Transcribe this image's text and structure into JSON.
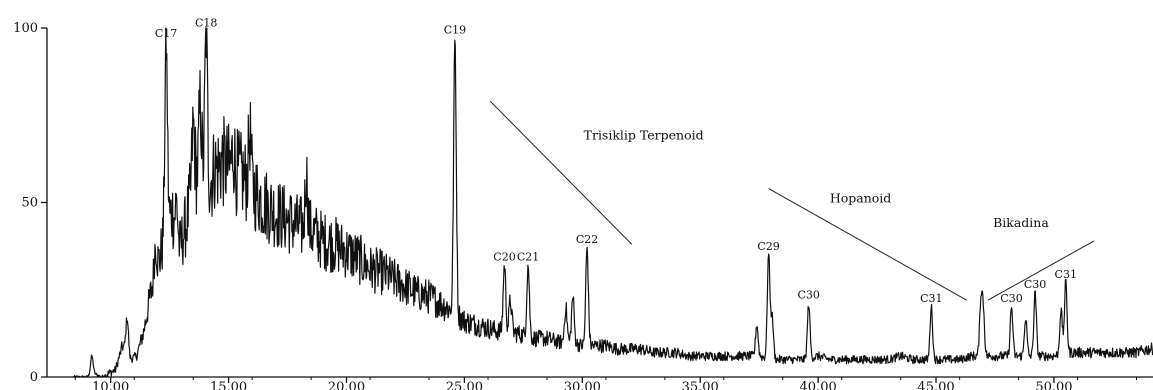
{
  "chart_data": {
    "type": "line",
    "title": "",
    "xlabel": "",
    "ylabel": "",
    "xlim": [
      7.3,
      54.2
    ],
    "ylim": [
      0,
      100
    ],
    "xticks": [
      10,
      15,
      20,
      25,
      30,
      35,
      40,
      45,
      50
    ],
    "xtick_labels": [
      "10.00",
      "15.00",
      "20.00",
      "25.00",
      "30.00",
      "35.00",
      "40.00",
      "45.00",
      "50.00"
    ],
    "yticks": [
      0,
      50,
      100
    ],
    "ytick_labels": [
      "0",
      "50",
      "100"
    ],
    "grid": false,
    "series": [
      {
        "x": [
          9.0,
          9.3,
          9.6,
          9.9,
          10.2,
          10.5,
          10.8,
          11.1,
          11.4,
          11.7,
          12.0,
          12.3,
          12.6,
          12.9,
          13.2,
          13.5,
          13.8,
          14.1,
          14.4,
          14.7,
          15.0,
          15.5,
          16.0,
          16.5,
          17.0,
          17.5,
          18.0,
          18.5,
          19.0,
          19.5,
          20.0,
          20.5,
          21.0,
          21.5,
          22.0,
          22.5,
          23.0,
          23.5,
          24.0,
          24.5,
          25.0,
          25.5,
          26.0,
          26.5,
          27.0,
          27.5,
          28.0,
          28.5,
          29.0,
          29.5,
          30.0,
          30.5,
          31.0,
          31.5,
          32.0,
          32.5,
          33.0,
          33.5,
          34.0,
          34.5,
          35.0,
          35.5,
          36.0,
          36.5,
          37.0,
          37.5,
          38.0,
          38.5,
          39.0,
          39.5,
          40.0,
          40.5,
          41.0,
          41.5,
          42.0,
          42.5,
          43.0,
          43.5,
          44.0,
          44.5,
          45.0,
          45.5,
          46.0,
          46.5,
          47.0,
          47.5,
          48.0,
          48.5,
          49.0,
          49.5,
          50.0,
          50.5,
          51.0,
          51.5,
          52.0,
          52.5,
          53.0,
          53.5,
          54.0
        ],
        "y": [
          0,
          1,
          0,
          1,
          2,
          9,
          5,
          6,
          13,
          24,
          32,
          40,
          48,
          36,
          44,
          56,
          60,
          54,
          58,
          62,
          60,
          58,
          54,
          50,
          47,
          45,
          43,
          42,
          39,
          38,
          36,
          34,
          31,
          30,
          28,
          26,
          24,
          23,
          21,
          19,
          16,
          15,
          14,
          13,
          13,
          12,
          11,
          11,
          10,
          10,
          9,
          9,
          9,
          8,
          8,
          8,
          7,
          7,
          7,
          6,
          6,
          6,
          6,
          6,
          6,
          6,
          5,
          5,
          5,
          5,
          6,
          5,
          5,
          5,
          5,
          5,
          5,
          6,
          5,
          5,
          5,
          5,
          5,
          6,
          6,
          6,
          6,
          6,
          6,
          6,
          6,
          7,
          7,
          7,
          7,
          7,
          7,
          7,
          8
        ]
      }
    ],
    "peaks": [
      {
        "label": "C17",
        "x": 12.35,
        "y": 96
      },
      {
        "label": "C18",
        "x": 14.05,
        "y": 99
      },
      {
        "label": "C19",
        "x": 24.6,
        "y": 97
      },
      {
        "label": "C20",
        "x": 26.7,
        "y": 32
      },
      {
        "label": "C21",
        "x": 27.7,
        "y": 32
      },
      {
        "label": "C22",
        "x": 30.2,
        "y": 37
      },
      {
        "label": "C29",
        "x": 37.9,
        "y": 35
      },
      {
        "label": "C30",
        "x": 39.6,
        "y": 21
      },
      {
        "label": "C31",
        "x": 44.8,
        "y": 20
      },
      {
        "label": "C30",
        "x": 48.2,
        "y": 20
      },
      {
        "label": "C30",
        "x": 49.2,
        "y": 24
      },
      {
        "label": "C31",
        "x": 50.5,
        "y": 27
      }
    ],
    "minor_peaks": [
      {
        "x": 9.2,
        "y": 6
      },
      {
        "x": 10.7,
        "y": 17
      },
      {
        "x": 11.9,
        "y": 38
      },
      {
        "x": 12.8,
        "y": 50
      },
      {
        "x": 13.5,
        "y": 72
      },
      {
        "x": 13.8,
        "y": 78
      },
      {
        "x": 14.4,
        "y": 60
      },
      {
        "x": 15.2,
        "y": 65
      },
      {
        "x": 15.9,
        "y": 70
      },
      {
        "x": 18.3,
        "y": 58
      },
      {
        "x": 26.95,
        "y": 22
      },
      {
        "x": 29.3,
        "y": 20
      },
      {
        "x": 29.6,
        "y": 23
      },
      {
        "x": 37.4,
        "y": 15
      },
      {
        "x": 38.05,
        "y": 17
      },
      {
        "x": 46.9,
        "y": 21
      },
      {
        "x": 47.0,
        "y": 19
      },
      {
        "x": 48.8,
        "y": 17
      },
      {
        "x": 50.3,
        "y": 19
      }
    ],
    "annotations": [
      {
        "text": "Trisiklip Terpenoid",
        "x": 32.6,
        "y": 68,
        "line": [
          [
            26.1,
            79
          ],
          [
            32.1,
            38
          ]
        ]
      },
      {
        "text": "Hopanoid",
        "x": 41.8,
        "y": 50,
        "line": [
          [
            37.9,
            54
          ],
          [
            46.3,
            22
          ]
        ]
      },
      {
        "text": "Bikadina",
        "x": 48.6,
        "y": 43,
        "line": [
          [
            47.2,
            22
          ],
          [
            51.7,
            39
          ]
        ]
      }
    ]
  }
}
